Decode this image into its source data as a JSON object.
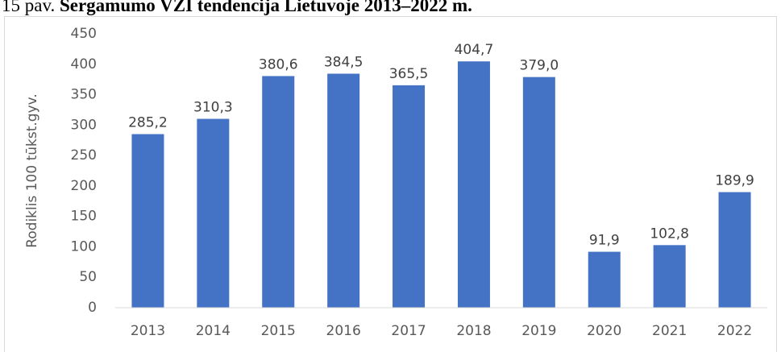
{
  "chart_data": {
    "type": "bar",
    "title_prefix": "15 pav.",
    "title": "Sergamumo VŽI tendencija Lietuvoje 2013–2022 m.",
    "y_label": "Rodiklis 100 tūkst.gyv.",
    "categories": [
      "2013",
      "2014",
      "2015",
      "2016",
      "2017",
      "2018",
      "2019",
      "2020",
      "2021",
      "2022"
    ],
    "values": [
      285.2,
      310.3,
      380.6,
      384.5,
      365.5,
      404.7,
      379.0,
      91.9,
      102.8,
      189.9
    ],
    "value_labels": [
      "285,2",
      "310,3",
      "380,6",
      "384,5",
      "365,5",
      "404,7",
      "379,0",
      "91,9",
      "102,8",
      "189,9"
    ],
    "color": "#4472c4",
    "ylim": [
      0,
      450
    ],
    "yticks": [
      0,
      50,
      100,
      150,
      200,
      250,
      300,
      350,
      400,
      450
    ],
    "grid": false
  }
}
